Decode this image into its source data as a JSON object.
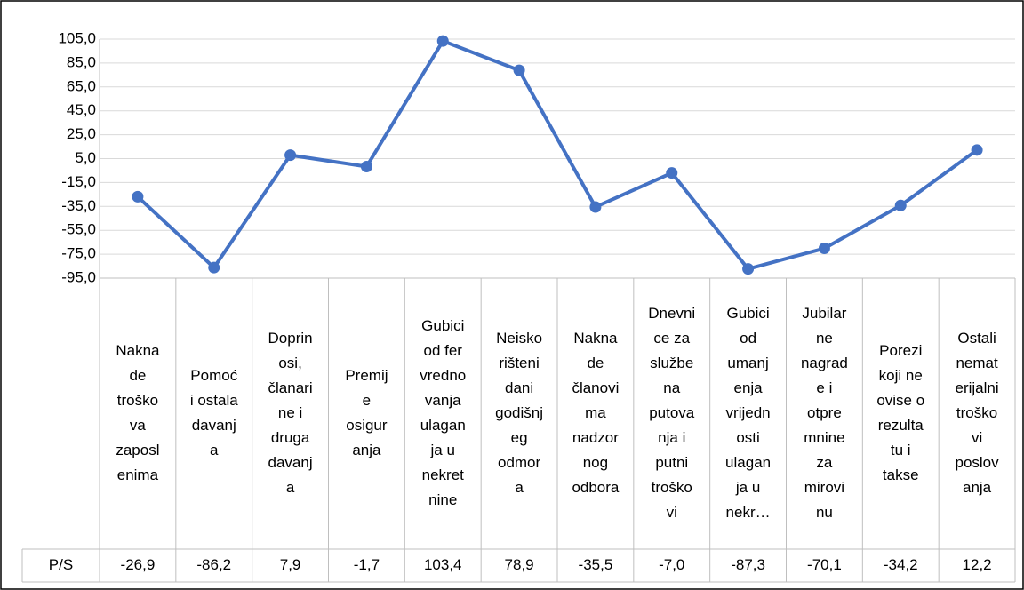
{
  "chart_data": {
    "type": "line",
    "categories": [
      [
        "Nakna",
        "de",
        "troško",
        "va",
        "zaposl",
        "enima"
      ],
      [
        "Pomoć",
        "i ostala",
        "davanj",
        "a"
      ],
      [
        "Doprin",
        "osi,",
        "članari",
        "ne i",
        "druga",
        "davanj",
        "a"
      ],
      [
        "Premij",
        "e",
        "osigur",
        "anja"
      ],
      [
        "Gubici",
        "od fer",
        "vredno",
        "vanja",
        "ulagan",
        "ja u",
        "nekret",
        "nine"
      ],
      [
        "Neisko",
        "rišteni",
        "dani",
        "godišnj",
        "eg",
        "odmor",
        "a"
      ],
      [
        "Nakna",
        "de",
        "članovi",
        "ma",
        "nadzor",
        "nog",
        "odbora"
      ],
      [
        "Dnevni",
        "ce za",
        "službe",
        "na",
        "putova",
        "nja i",
        "putni",
        "troško",
        "vi"
      ],
      [
        "Gubici",
        "od",
        "umanj",
        "enja",
        "vrijedn",
        "osti",
        "ulagan",
        "ja u",
        "nekr…"
      ],
      [
        "Jubilar",
        "ne",
        "nagrad",
        "e i",
        "otpre",
        "mnine",
        "za",
        "mirovi",
        "nu"
      ],
      [
        "Porezi",
        "koji ne",
        "ovise o",
        "rezulta",
        "tu i",
        "takse"
      ],
      [
        "Ostali",
        "nemat",
        "erijalni",
        "troško",
        "vi",
        "poslov",
        "anja"
      ]
    ],
    "series": [
      {
        "name": "P/S",
        "color": "#4472c4",
        "values": [
          -26.9,
          -86.2,
          7.9,
          -1.7,
          103.4,
          78.9,
          -35.5,
          -7.0,
          -87.3,
          -70.1,
          -34.2,
          12.2
        ],
        "value_labels": [
          "-26,9",
          "-86,2",
          "7,9",
          "-1,7",
          "103,4",
          "78,9",
          "-35,5",
          "-7,0",
          "-87,3",
          "-70,1",
          "-34,2",
          "12,2"
        ]
      }
    ],
    "ylim": [
      -95,
      105
    ],
    "yticks": [
      {
        "value": -95,
        "label": "-95,0"
      },
      {
        "value": -75,
        "label": "-75,0"
      },
      {
        "value": -55,
        "label": "-55,0"
      },
      {
        "value": -35,
        "label": "-35,0"
      },
      {
        "value": -15,
        "label": "-15,0"
      },
      {
        "value": 5,
        "label": "5,0"
      },
      {
        "value": 25,
        "label": "25,0"
      },
      {
        "value": 45,
        "label": "45,0"
      },
      {
        "value": 65,
        "label": "65,0"
      },
      {
        "value": 85,
        "label": "85,0"
      },
      {
        "value": 105,
        "label": "105,0"
      }
    ],
    "grid": true
  }
}
